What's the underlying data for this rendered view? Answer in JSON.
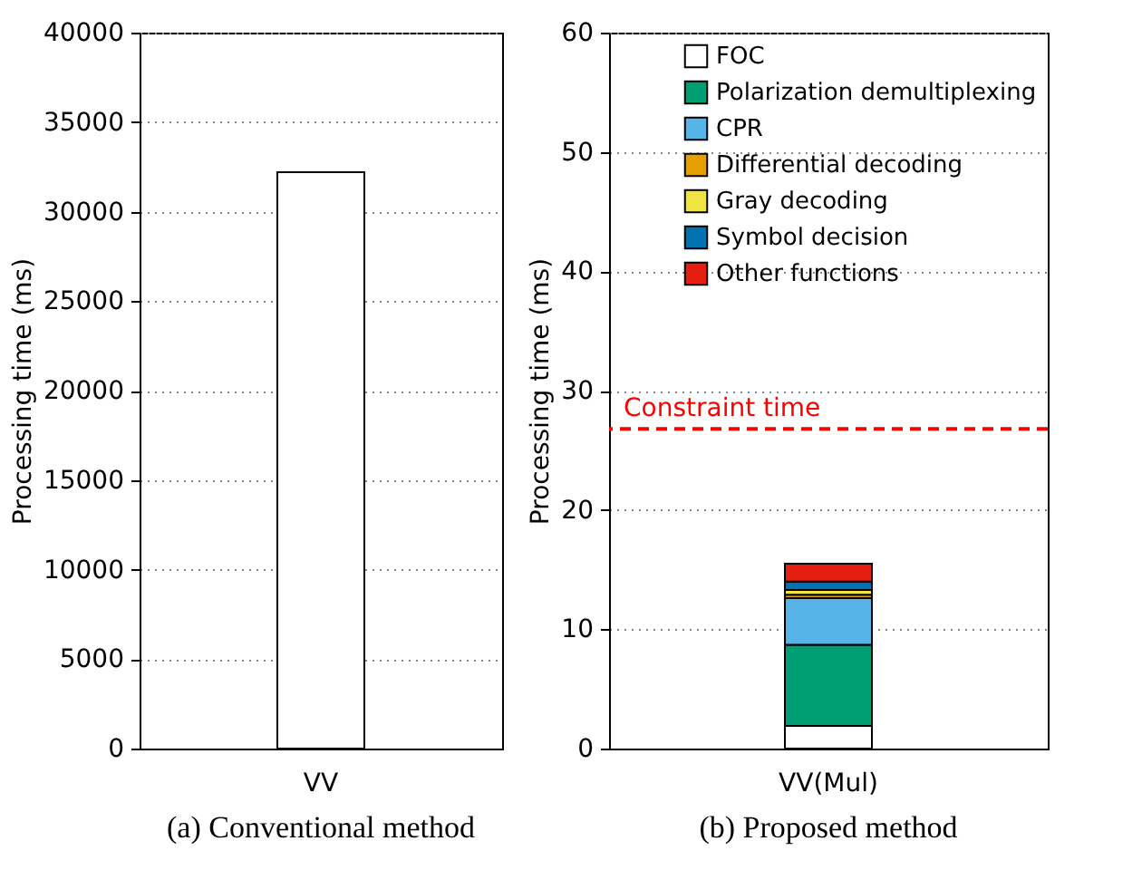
{
  "chart_data": [
    {
      "type": "bar",
      "title": "(a) Conventional method",
      "ylabel": "Processing time (ms)",
      "categories": [
        "VV"
      ],
      "values": [
        32200
      ],
      "color": "#ffffff",
      "ylim": [
        0,
        40000
      ],
      "yticks": [
        0,
        5000,
        10000,
        15000,
        20000,
        25000,
        30000,
        35000,
        40000
      ],
      "grid": "y"
    },
    {
      "type": "bar",
      "title": "(b) Proposed method",
      "ylabel": "Processing time (ms)",
      "categories": [
        "VV(Mul)"
      ],
      "stacked": true,
      "ylim": [
        0,
        60
      ],
      "yticks": [
        0,
        10,
        20,
        30,
        40,
        50,
        60
      ],
      "grid": "y",
      "legend": "top right",
      "series": [
        {
          "name": "FOC",
          "color": "#ffffff",
          "values": [
            1.9
          ]
        },
        {
          "name": "Polarization demultiplexing",
          "color": "#009e73",
          "values": [
            6.8
          ]
        },
        {
          "name": "CPR",
          "color": "#56b4e9",
          "values": [
            3.9
          ]
        },
        {
          "name": "Differential decoding",
          "color": "#e69f00",
          "values": [
            0.3
          ]
        },
        {
          "name": "Gray decoding",
          "color": "#f0e442",
          "values": [
            0.4
          ]
        },
        {
          "name": "Symbol decision",
          "color": "#0072b2",
          "values": [
            0.7
          ]
        },
        {
          "name": "Other functions",
          "color": "#e51e10",
          "values": [
            1.5
          ]
        }
      ],
      "ref_lines": [
        {
          "axis": "y",
          "value": 26.8,
          "label": "Constraint time",
          "color": "#ff0000",
          "line_style": "dashed"
        }
      ]
    }
  ]
}
